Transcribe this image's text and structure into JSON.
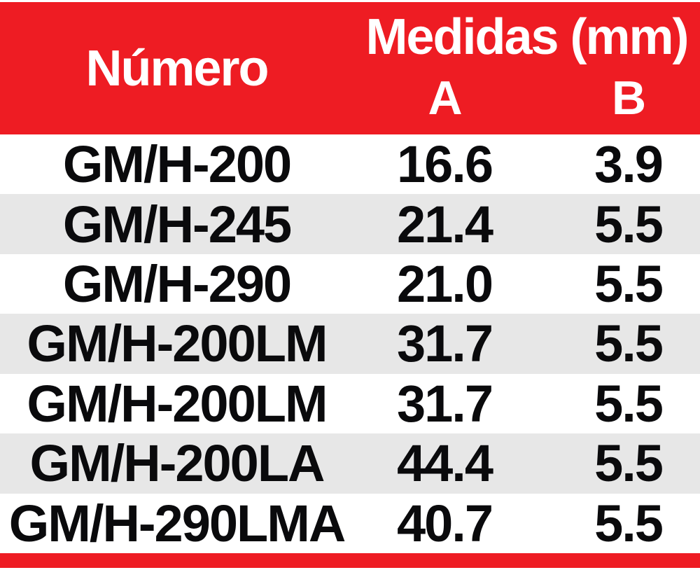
{
  "chart_data": {
    "type": "table",
    "header": {
      "numero": "Número",
      "medidas_group": "Medidas (mm)",
      "col_a": "A",
      "col_b": "B"
    },
    "columns": [
      "Número",
      "A",
      "B"
    ],
    "rows": [
      {
        "numero": "GM/H-200",
        "a": "16.6",
        "b": "3.9"
      },
      {
        "numero": "GM/H-245",
        "a": "21.4",
        "b": "5.5"
      },
      {
        "numero": "GM/H-290",
        "a": "21.0",
        "b": "5.5"
      },
      {
        "numero": "GM/H-200LM",
        "a": "31.7",
        "b": "5.5"
      },
      {
        "numero": "GM/H-200LM",
        "a": "31.7",
        "b": "5.5"
      },
      {
        "numero": "GM/H-200LA",
        "a": "44.4",
        "b": "5.5"
      },
      {
        "numero": "GM/H-290LMA",
        "a": "40.7",
        "b": "5.5"
      }
    ],
    "layout": {
      "row_striping": "white / light-gray alternating, first data row white",
      "header_position": "top",
      "footer_accent_bar": true
    }
  },
  "colors": {
    "accent_red": "#EE1C23",
    "header_text": "#FFFFFF",
    "row_alt_bg": "#E7E7E7",
    "row_bg": "#FFFFFF",
    "text_black": "#0A0A0C"
  }
}
